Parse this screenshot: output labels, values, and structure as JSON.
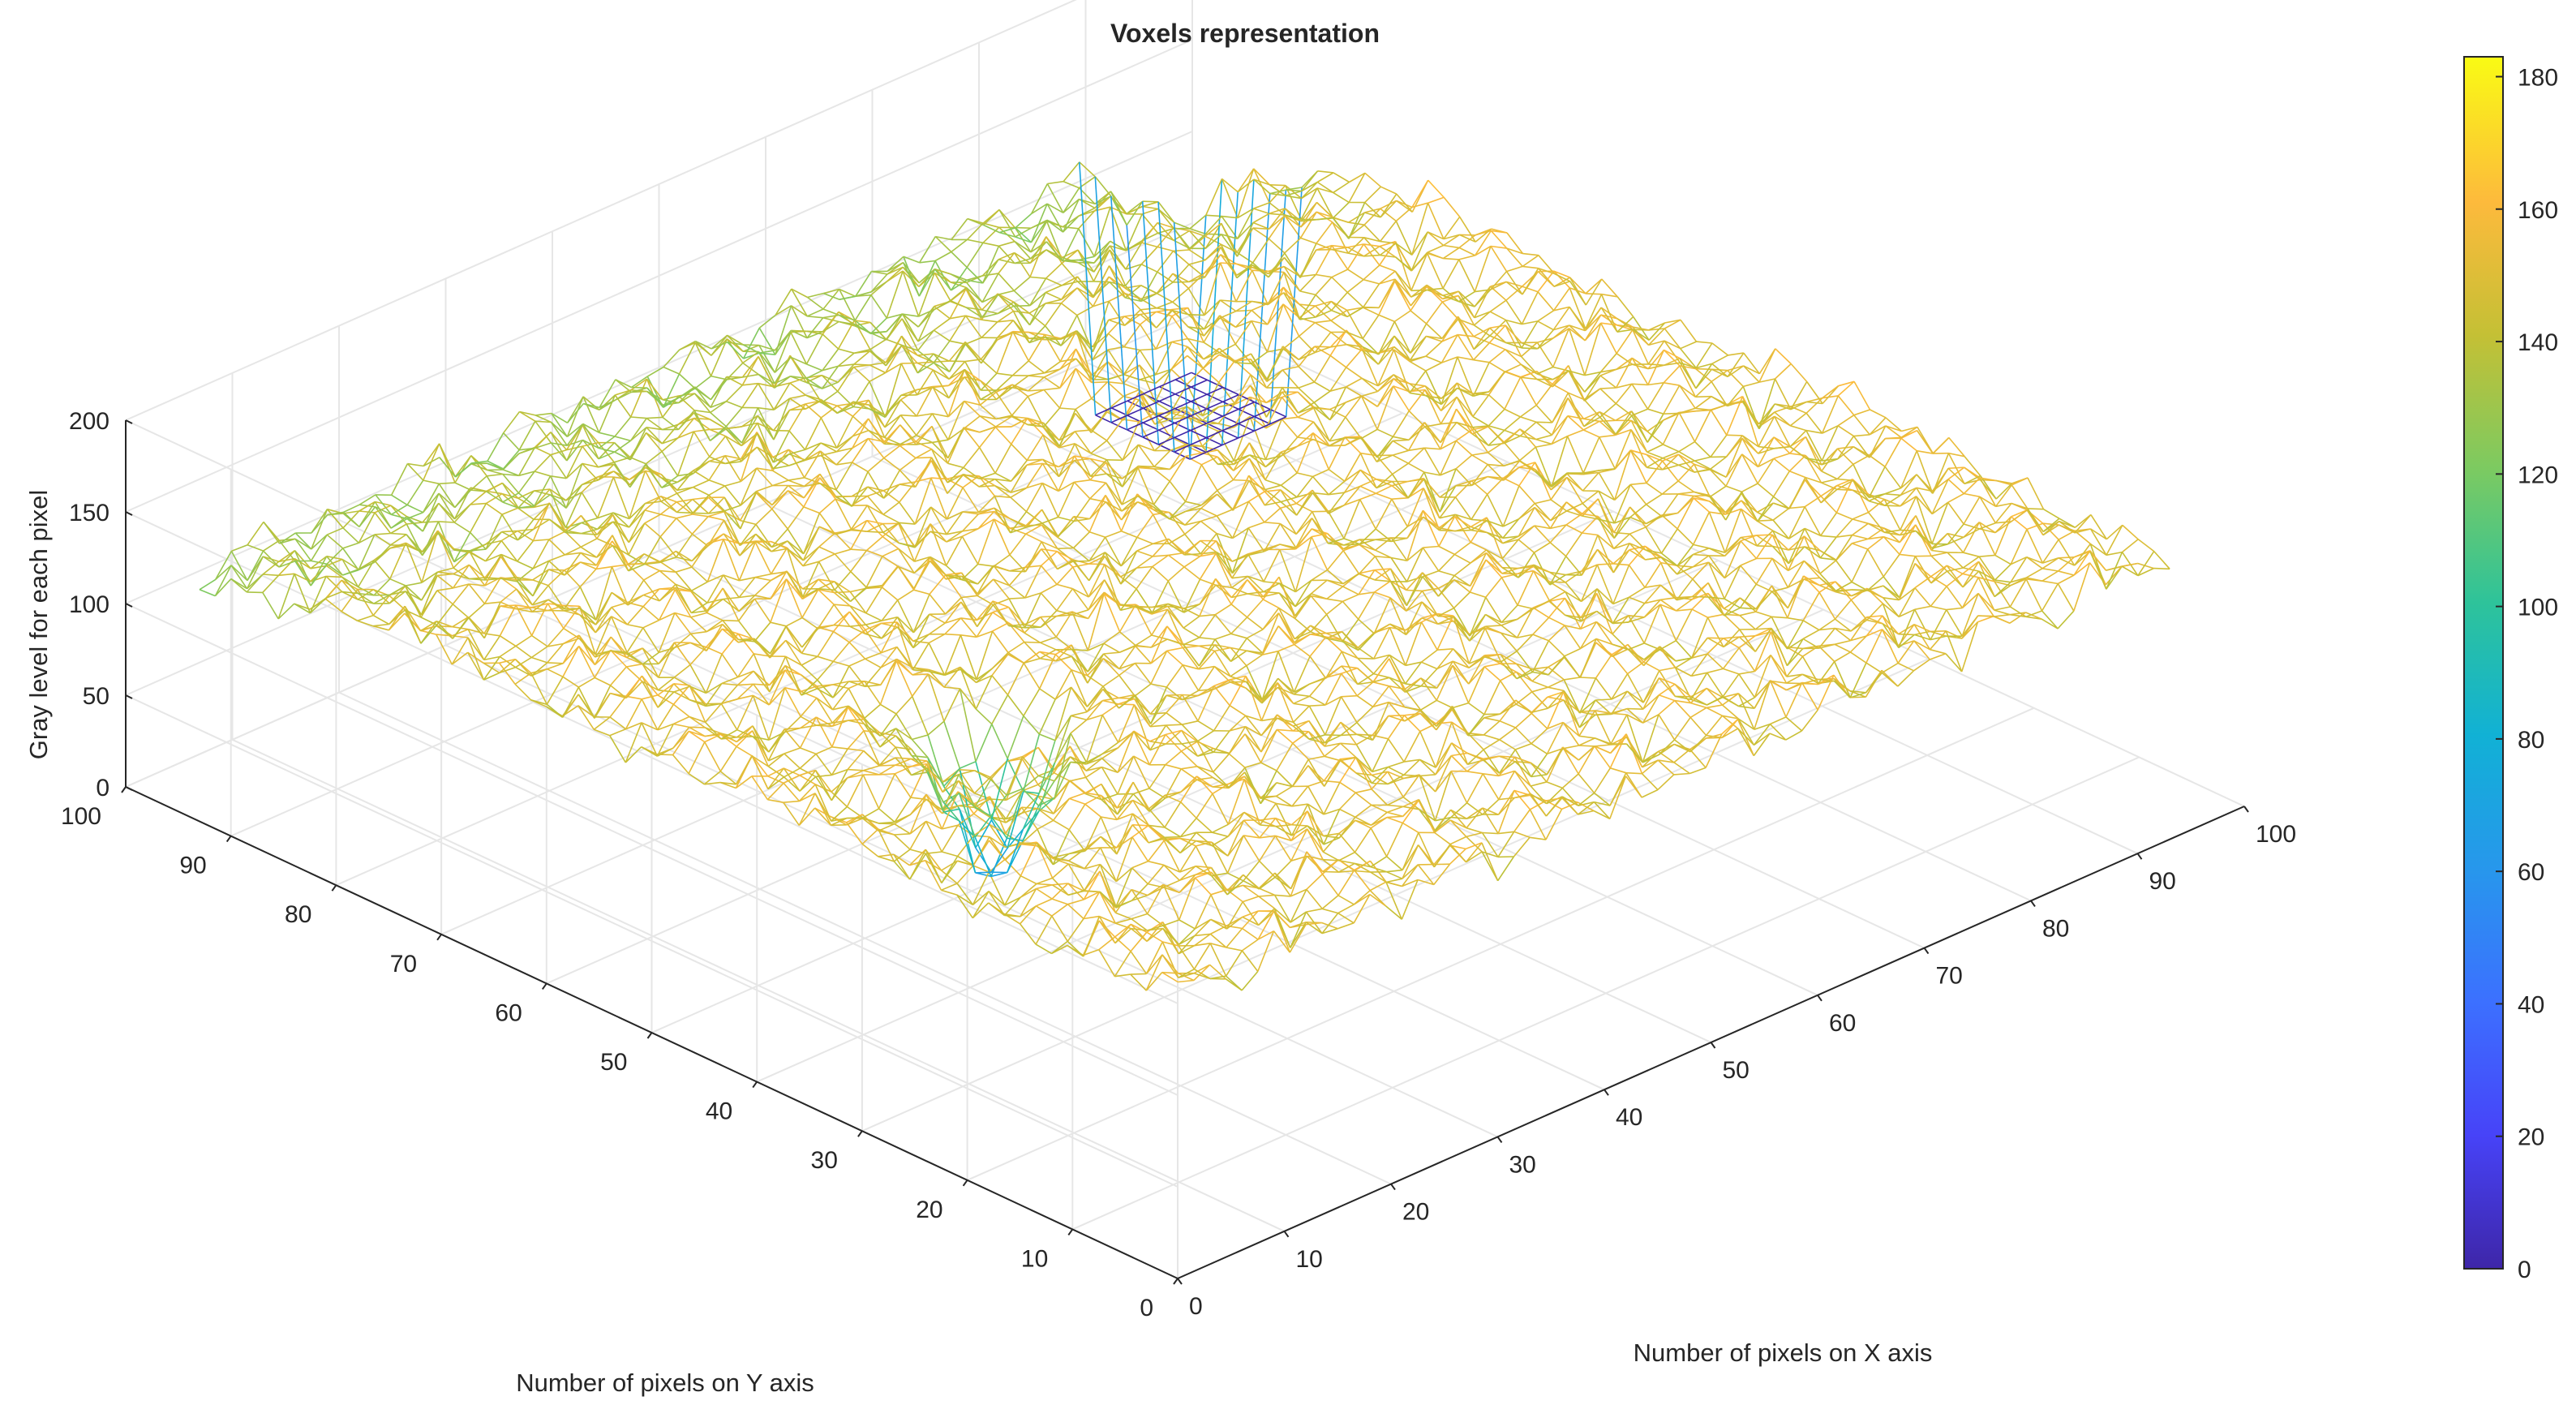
{
  "chart_data": {
    "type": "surface-mesh",
    "title": "Voxels representation",
    "xlabel": "Number of pixels on X axis",
    "ylabel": "Number of pixels on Y axis",
    "zlabel": "Gray level for each pixel",
    "xlim": [
      0,
      100
    ],
    "ylim": [
      0,
      100
    ],
    "zlim": [
      0,
      200
    ],
    "x_ticks": [
      0,
      10,
      20,
      30,
      40,
      50,
      60,
      70,
      80,
      90,
      100
    ],
    "y_ticks": [
      0,
      10,
      20,
      30,
      40,
      50,
      60,
      70,
      80,
      90,
      100
    ],
    "z_ticks": [
      0,
      50,
      100,
      150,
      200
    ],
    "colorbar": {
      "limits": [
        0,
        183
      ],
      "ticks": [
        0,
        20,
        40,
        60,
        80,
        100,
        120,
        140,
        160,
        180
      ],
      "colormap": "parula"
    },
    "grid": true,
    "surface": {
      "x_range": [
        1,
        94
      ],
      "y_range": [
        1,
        94
      ],
      "typical_level": 150,
      "level_range": [
        55,
        182
      ],
      "flat_region": {
        "x_from": 85,
        "x_to": 94,
        "y_from": 85,
        "y_to": 94,
        "level": 0
      },
      "notable_minimum": {
        "x": 20,
        "y": 38,
        "level": 55
      }
    }
  }
}
